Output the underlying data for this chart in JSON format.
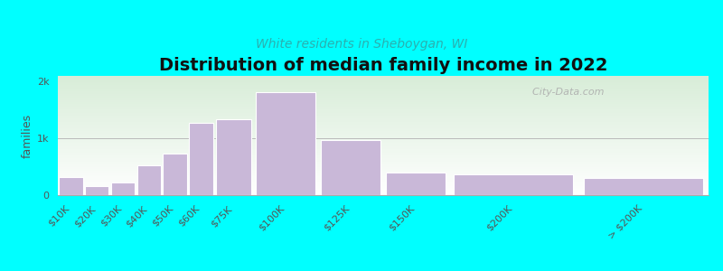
{
  "title": "Distribution of median family income in 2022",
  "subtitle": "White residents in Sheboygan, WI",
  "ylabel": "families",
  "background_color": "#00FFFF",
  "bar_color": "#c9b8d8",
  "bar_edge_color": "#ffffff",
  "categories": [
    "$10K",
    "$20K",
    "$30K",
    "$40K",
    "$50K",
    "$60K",
    "$75K",
    "$100K",
    "$125K",
    "$150K",
    "$200K",
    "> $200K"
  ],
  "values": [
    320,
    160,
    230,
    530,
    730,
    1280,
    1340,
    1820,
    970,
    400,
    370,
    310
  ],
  "left_edges": [
    0,
    10,
    20,
    30,
    40,
    50,
    60,
    75,
    100,
    125,
    150,
    200
  ],
  "widths": [
    10,
    10,
    10,
    10,
    10,
    10,
    15,
    25,
    25,
    25,
    50,
    50
  ],
  "xlim": [
    0,
    250
  ],
  "ylim": [
    0,
    2100
  ],
  "ytick_labels": [
    "0",
    "1k",
    "2k"
  ],
  "ytick_values": [
    0,
    1000,
    2000
  ],
  "title_fontsize": 14,
  "subtitle_fontsize": 10,
  "ylabel_fontsize": 9,
  "tick_fontsize": 8,
  "watermark": "  City-Data.com"
}
